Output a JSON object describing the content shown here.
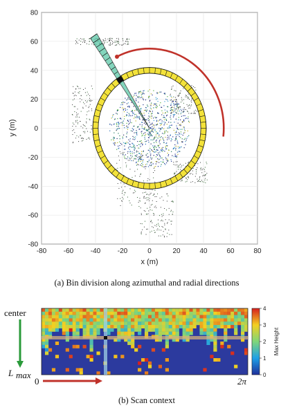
{
  "captions": {
    "a": "(a) Bin division along azimuthal and radial directions",
    "b": "(b) Scan context"
  },
  "plot": {
    "xlabel": "x (m)",
    "ylabel": "y (m)"
  },
  "scan_context": {
    "center_label": "center",
    "lmax_main": "L",
    "lmax_sub": "max",
    "angle_start": "0",
    "angle_end": "2π",
    "colorbar_label": "Max Height"
  },
  "chart_data": [
    {
      "type": "scatter",
      "xlabel": "x (m)",
      "ylabel": "y (m)",
      "xlim": [
        -80,
        80
      ],
      "ylim": [
        -80,
        80
      ],
      "xticks": [
        -80,
        -60,
        -40,
        -20,
        0,
        20,
        40,
        60,
        80
      ],
      "yticks": [
        -80,
        -60,
        -40,
        -20,
        0,
        20,
        40,
        60,
        80
      ],
      "grid": true,
      "annotations": {
        "ring_inner_radius": 38,
        "ring_outer_radius": 42,
        "ring_bins": 60,
        "sector_angle_deg": 123,
        "sector_end_radius": 76,
        "sector_radial_bins": 20,
        "azimuth_arc_radius": 55,
        "azimuth_arc_start_deg": 116,
        "azimuth_arc_end_deg": -6,
        "colors": {
          "ring": "#f3e23a",
          "sector": "#5cc8a8",
          "arrow": "#c0322a"
        }
      }
    },
    {
      "type": "heatmap",
      "title": "Scan context",
      "x_range": [
        "0",
        "2π"
      ],
      "y_range": [
        "center",
        "L_max"
      ],
      "colorbar": {
        "label": "Max Height",
        "ticks": [
          0,
          1,
          2,
          3,
          4
        ],
        "colormap": "jet"
      }
    }
  ]
}
